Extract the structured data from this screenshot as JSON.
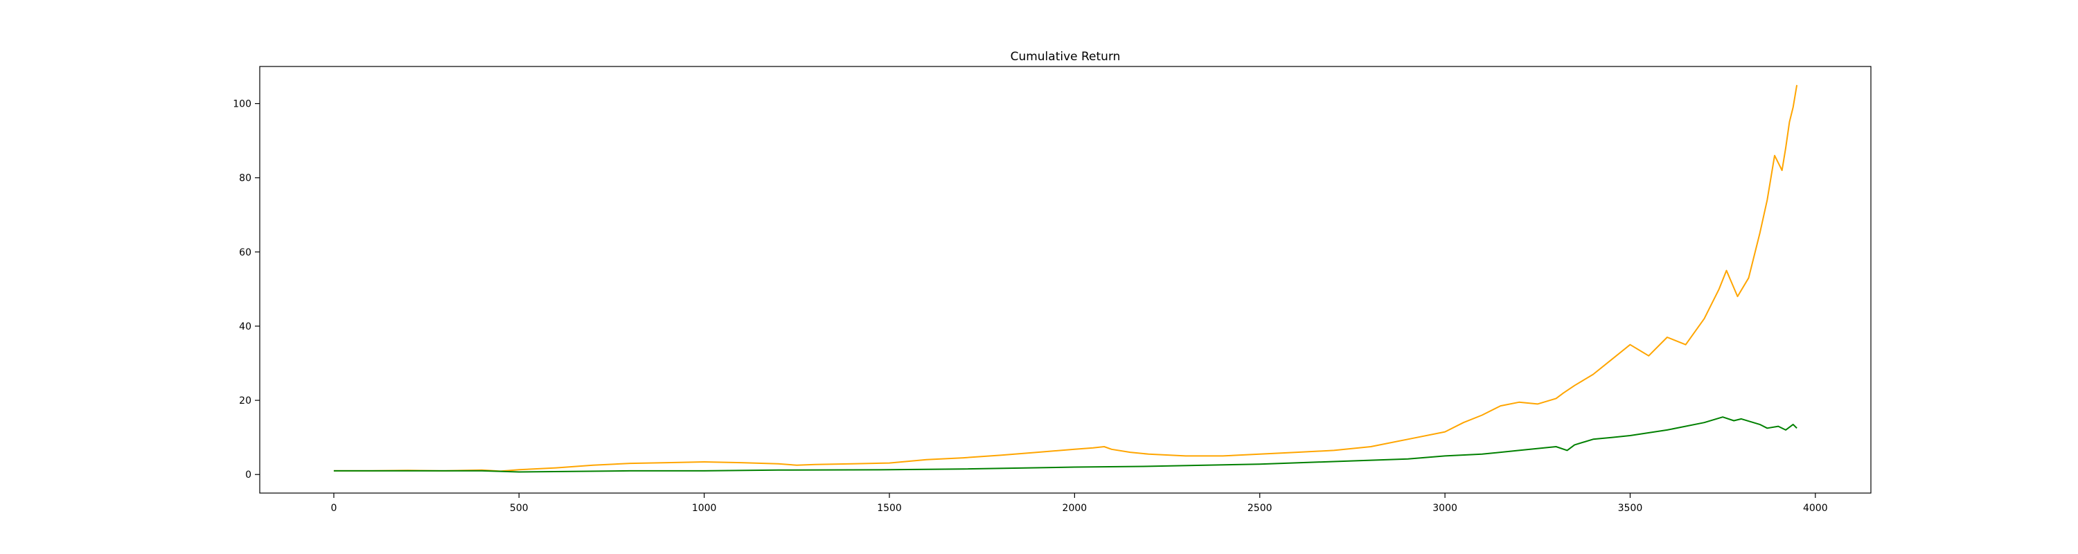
{
  "chart_data": {
    "type": "line",
    "title": "Cumulative Return",
    "xlabel": "",
    "ylabel": "",
    "xlim": [
      -200,
      4150
    ],
    "ylim": [
      -5,
      110
    ],
    "xticks": [
      0,
      500,
      1000,
      1500,
      2000,
      2500,
      3000,
      3500,
      4000
    ],
    "yticks": [
      0,
      20,
      40,
      60,
      80,
      100
    ],
    "grid": false,
    "legend": "none",
    "series": [
      {
        "color": "#ffa500",
        "x": [
          0,
          100,
          200,
          300,
          400,
          450,
          500,
          600,
          700,
          800,
          900,
          1000,
          1100,
          1200,
          1250,
          1300,
          1400,
          1500,
          1600,
          1700,
          1800,
          1900,
          2000,
          2050,
          2080,
          2100,
          2150,
          2200,
          2300,
          2400,
          2500,
          2600,
          2700,
          2800,
          2900,
          3000,
          3050,
          3100,
          3150,
          3200,
          3250,
          3300,
          3320,
          3350,
          3400,
          3450,
          3500,
          3550,
          3600,
          3650,
          3700,
          3740,
          3760,
          3790,
          3820,
          3850,
          3870,
          3890,
          3910,
          3920,
          3930,
          3940,
          3950
        ],
        "y": [
          1.0,
          1.0,
          1.1,
          1.0,
          1.2,
          0.9,
          1.3,
          1.8,
          2.5,
          3.0,
          3.2,
          3.4,
          3.2,
          2.9,
          2.5,
          2.7,
          2.9,
          3.1,
          4.0,
          4.5,
          5.2,
          6.0,
          6.8,
          7.2,
          7.5,
          6.8,
          6.0,
          5.5,
          5.0,
          5.0,
          5.5,
          6.0,
          6.5,
          7.5,
          9.5,
          11.5,
          14.0,
          16.0,
          18.5,
          19.5,
          19.0,
          20.5,
          22.0,
          24.0,
          27.0,
          31.0,
          35.0,
          32.0,
          37.0,
          35.0,
          42.0,
          50.0,
          55.0,
          48.0,
          53.0,
          65.0,
          74.0,
          86.0,
          82.0,
          88.0,
          95.0,
          99.0,
          105.0
        ]
      },
      {
        "color": "#008000",
        "x": [
          0,
          200,
          400,
          500,
          800,
          1000,
          1200,
          1500,
          1700,
          2000,
          2200,
          2500,
          2700,
          2900,
          3000,
          3100,
          3200,
          3300,
          3330,
          3350,
          3400,
          3450,
          3500,
          3600,
          3700,
          3750,
          3780,
          3800,
          3850,
          3870,
          3900,
          3920,
          3940,
          3950
        ],
        "y": [
          1.0,
          1.0,
          1.0,
          0.7,
          1.0,
          1.0,
          1.2,
          1.3,
          1.5,
          2.0,
          2.2,
          2.8,
          3.5,
          4.2,
          5.0,
          5.5,
          6.5,
          7.5,
          6.5,
          8.0,
          9.5,
          10.0,
          10.5,
          12.0,
          14.0,
          15.5,
          14.5,
          15.0,
          13.5,
          12.5,
          13.0,
          12.0,
          13.5,
          12.5
        ]
      }
    ]
  }
}
